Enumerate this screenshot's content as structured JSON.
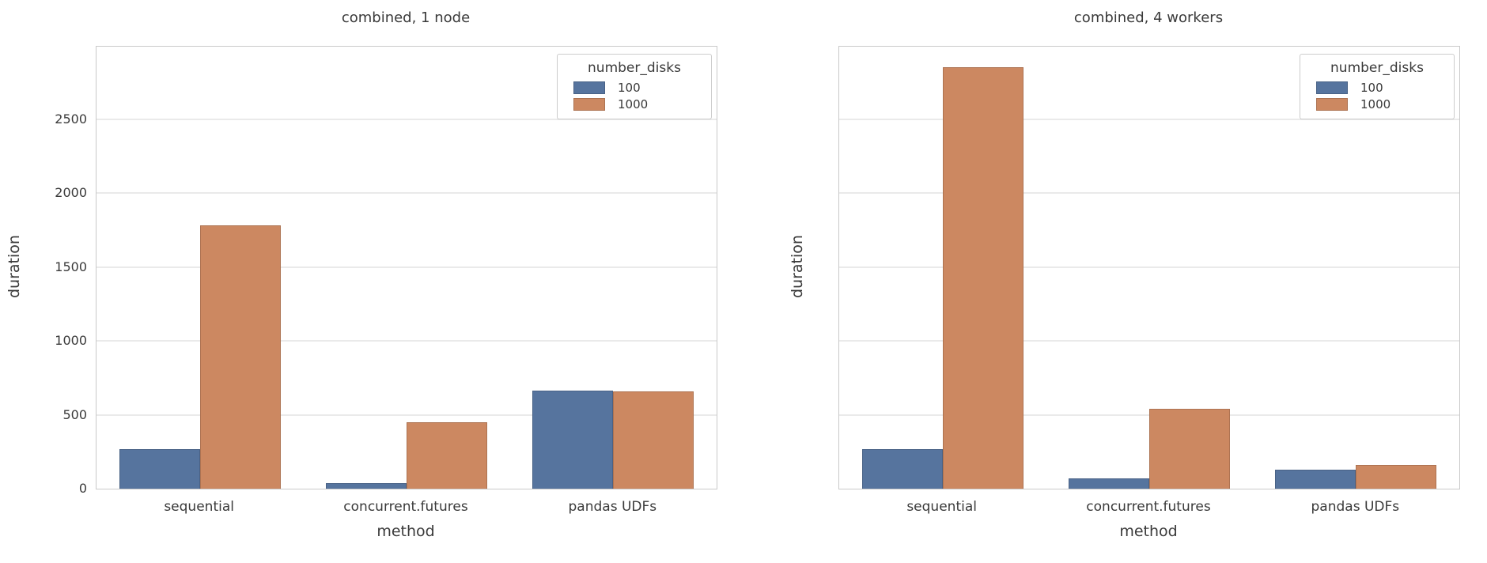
{
  "figure": {
    "background": "#ffffff",
    "grid_color": "#d4d4d4",
    "axis_border_color": "#c9c9c9",
    "text_color": "#3a3a3a"
  },
  "legend": {
    "title": "number_disks",
    "entries": [
      {
        "label": "100",
        "color": "#56749E"
      },
      {
        "label": "1000",
        "color": "#CC8861"
      }
    ]
  },
  "chart_data": [
    {
      "type": "bar",
      "title": "combined, 1 node",
      "xlabel": "method",
      "ylabel": "duration",
      "categories": [
        "sequential",
        "concurrent.futures",
        "pandas UDFs"
      ],
      "series": [
        {
          "name": "100",
          "values": [
            265,
            40,
            665
          ]
        },
        {
          "name": "1000",
          "values": [
            1780,
            450,
            660
          ]
        }
      ],
      "ylim": [
        0,
        2990
      ],
      "yticks": [
        0,
        500,
        1000,
        1500,
        2000,
        2500
      ],
      "show_ytick_labels": true,
      "grid": true,
      "legend_position": "upper right"
    },
    {
      "type": "bar",
      "title": "combined, 4 workers",
      "xlabel": "method",
      "ylabel": "duration",
      "categories": [
        "sequential",
        "concurrent.futures",
        "pandas UDFs"
      ],
      "series": [
        {
          "name": "100",
          "values": [
            270,
            70,
            130
          ]
        },
        {
          "name": "1000",
          "values": [
            2850,
            540,
            160
          ]
        }
      ],
      "ylim": [
        0,
        2990
      ],
      "yticks": [
        0,
        500,
        1000,
        1500,
        2000,
        2500
      ],
      "show_ytick_labels": false,
      "grid": true,
      "legend_position": "upper right"
    }
  ]
}
